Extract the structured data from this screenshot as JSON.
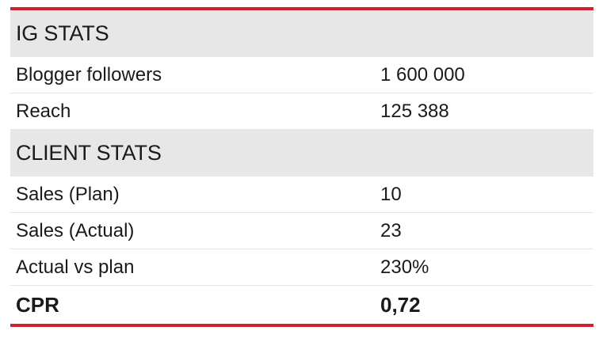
{
  "table": {
    "sections": [
      {
        "title": "IG STATS",
        "rows": [
          {
            "label": "Blogger followers",
            "value": "1 600 000"
          },
          {
            "label": "Reach",
            "value": "125 388"
          }
        ]
      },
      {
        "title": "CLIENT STATS",
        "rows": [
          {
            "label": "Sales (Plan)",
            "value": "10"
          },
          {
            "label": "Sales (Actual)",
            "value": "23"
          },
          {
            "label": "Actual vs plan",
            "value": "230%"
          }
        ]
      }
    ],
    "total": {
      "label": "CPR",
      "value": "0,72"
    }
  },
  "colors": {
    "accent": "#d0202e",
    "section_background": "#e7e7e8"
  }
}
